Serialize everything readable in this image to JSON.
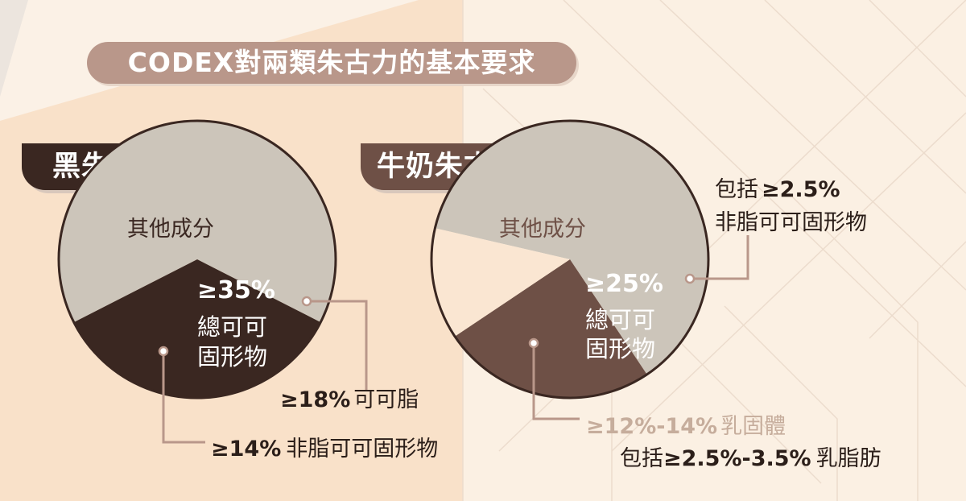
{
  "title": "CODEX對兩類朱古力的基本要求",
  "chart_data": [
    {
      "type": "pie",
      "title": "黑朱古力",
      "slices": [
        {
          "label": "其他成分",
          "value": 65,
          "color": "#ccc5ba"
        },
        {
          "label": "總可可固形物",
          "value": 35,
          "color": "#3a2721"
        }
      ],
      "inner_label": {
        "value": "≥35%",
        "line1": "總可可",
        "line2": "固形物"
      },
      "callouts": [
        {
          "value": "≥18%",
          "text": "可可脂"
        },
        {
          "value": "≥14%",
          "text": "非脂可可固形物"
        }
      ]
    },
    {
      "type": "pie",
      "title": "牛奶朱古力",
      "slices": [
        {
          "label": "其他成分",
          "value": 62,
          "color": "#ccc5ba"
        },
        {
          "label": "總可可固形物",
          "value": 25,
          "color": "#6e5046"
        },
        {
          "label": "乳固體",
          "value": 13,
          "color": "#fae6d2"
        }
      ],
      "inner_label": {
        "value": "≥25%",
        "line1": "總可可",
        "line2": "固形物"
      },
      "callouts": [
        {
          "prefix": "包括",
          "value": "≥2.5%",
          "text": "非脂可可固形物"
        },
        {
          "value": "≥12%-14%",
          "text": "乳固體"
        },
        {
          "prefix": "包括",
          "value": "≥2.5%-3.5%",
          "text": "乳脂肪"
        }
      ]
    }
  ]
}
